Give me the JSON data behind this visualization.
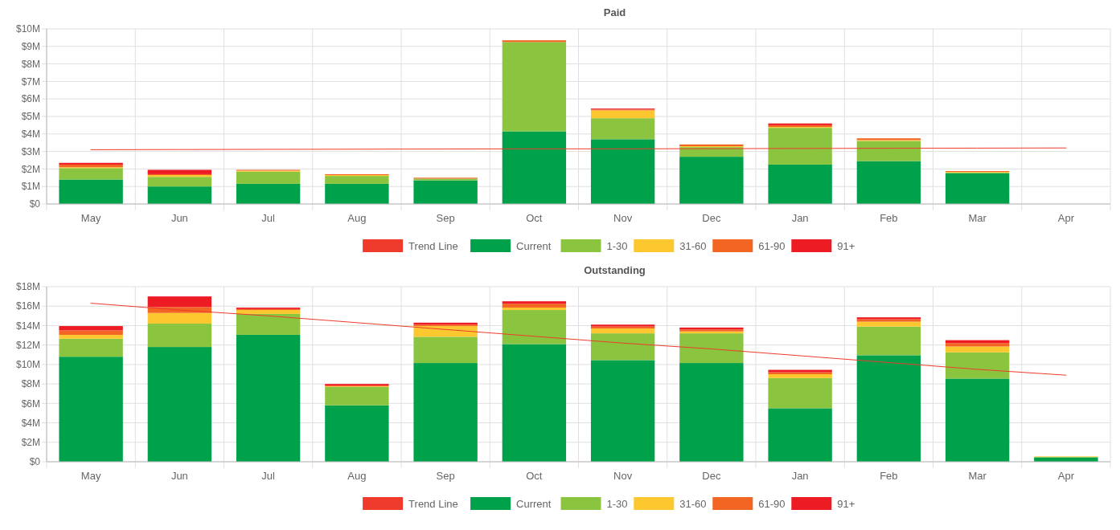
{
  "chart_data": [
    {
      "type": "bar",
      "title": "Paid",
      "stacked": true,
      "grid": true,
      "legend": "bottom",
      "categories": [
        "May",
        "Jun",
        "Jul",
        "Aug",
        "Sep",
        "Oct",
        "Nov",
        "Dec",
        "Jan",
        "Feb",
        "Mar",
        "Apr"
      ],
      "ylim": [
        0,
        10
      ],
      "yticks": [
        {
          "value": 0,
          "label": "$0"
        },
        {
          "value": 1,
          "label": "$1M"
        },
        {
          "value": 2,
          "label": "$2M"
        },
        {
          "value": 3,
          "label": "$3M"
        },
        {
          "value": 4,
          "label": "$4M"
        },
        {
          "value": 5,
          "label": "$5M"
        },
        {
          "value": 6,
          "label": "$6M"
        },
        {
          "value": 7,
          "label": "$7M"
        },
        {
          "value": 8,
          "label": "$8M"
        },
        {
          "value": 9,
          "label": "$9M"
        },
        {
          "value": 10,
          "label": "$10M"
        }
      ],
      "series": [
        {
          "name": "Trend Line",
          "type": "line",
          "color": "#ef3b2c",
          "values": [
            3.1,
            3.11,
            3.12,
            3.13,
            3.14,
            3.15,
            3.15,
            3.16,
            3.17,
            3.18,
            3.19,
            3.2
          ]
        },
        {
          "name": "Current",
          "color": "#00a14b",
          "values": [
            1.4,
            1.0,
            1.15,
            1.15,
            1.35,
            4.15,
            3.7,
            2.7,
            2.25,
            2.45,
            1.75,
            0
          ]
        },
        {
          "name": "1-30",
          "color": "#8bc540",
          "values": [
            0.65,
            0.55,
            0.7,
            0.45,
            0.1,
            5.1,
            1.2,
            0.55,
            2.1,
            1.15,
            0.05,
            0
          ]
        },
        {
          "name": "31-60",
          "color": "#fdc82f",
          "values": [
            0.05,
            0.1,
            0.05,
            0.05,
            null,
            0,
            0.45,
            0.05,
            0.05,
            0.05,
            0.03,
            0
          ]
        },
        {
          "name": "61-90",
          "color": "#f26522",
          "values": [
            0.15,
            0.05,
            0.05,
            0.05,
            0.05,
            0.1,
            0.05,
            0.1,
            0.1,
            0.1,
            0.05,
            0
          ]
        },
        {
          "name": "91+",
          "color": "#ed1c24",
          "values": [
            0.1,
            0.25,
            0,
            0,
            0,
            null,
            0.05,
            0,
            0.1,
            0,
            0,
            0
          ]
        }
      ]
    },
    {
      "type": "bar",
      "title": "Outstanding",
      "stacked": true,
      "grid": true,
      "legend": "bottom",
      "categories": [
        "May",
        "Jun",
        "Jul",
        "Aug",
        "Sep",
        "Oct",
        "Nov",
        "Dec",
        "Jan",
        "Feb",
        "Mar",
        "Apr"
      ],
      "ylim": [
        0,
        18
      ],
      "yticks": [
        {
          "value": 0,
          "label": "$0"
        },
        {
          "value": 2,
          "label": "$2M"
        },
        {
          "value": 4,
          "label": "$4M"
        },
        {
          "value": 6,
          "label": "$6M"
        },
        {
          "value": 8,
          "label": "$8M"
        },
        {
          "value": 10,
          "label": "$10M"
        },
        {
          "value": 12,
          "label": "$12M"
        },
        {
          "value": 14,
          "label": "$14M"
        },
        {
          "value": 16,
          "label": "$16M"
        },
        {
          "value": 18,
          "label": "$18M"
        }
      ],
      "series": [
        {
          "name": "Trend Line",
          "type": "line",
          "color": "#ef3b2c",
          "values": [
            16.3,
            15.6,
            15.0,
            14.3,
            13.6,
            12.9,
            12.2,
            11.6,
            10.9,
            10.2,
            9.5,
            8.9
          ]
        },
        {
          "name": "Current",
          "color": "#00a14b",
          "values": [
            10.8,
            11.8,
            13.05,
            5.8,
            10.15,
            12.1,
            10.45,
            10.15,
            5.5,
            10.95,
            8.55,
            0.45
          ]
        },
        {
          "name": "1-30",
          "color": "#8bc540",
          "values": [
            1.85,
            2.4,
            2.15,
            1.9,
            2.7,
            3.5,
            2.75,
            3.05,
            3.1,
            2.95,
            2.7,
            0.05
          ]
        },
        {
          "name": "31-60",
          "color": "#fdc82f",
          "values": [
            0.4,
            1.1,
            0.4,
            0.05,
            1.1,
            0.25,
            0.5,
            0.2,
            0.4,
            0.5,
            0.6,
            0.05
          ]
        },
        {
          "name": "61-90",
          "color": "#f26522",
          "values": [
            0.45,
            0.6,
            0.1,
            0.1,
            0.15,
            0.4,
            0.2,
            0.2,
            0.2,
            0.25,
            0.35,
            null
          ]
        },
        {
          "name": "91+",
          "color": "#ed1c24",
          "values": [
            0.45,
            1.1,
            0.15,
            0.15,
            0.2,
            0.25,
            0.2,
            0.2,
            0.25,
            0.2,
            0.3,
            0
          ]
        }
      ]
    }
  ]
}
